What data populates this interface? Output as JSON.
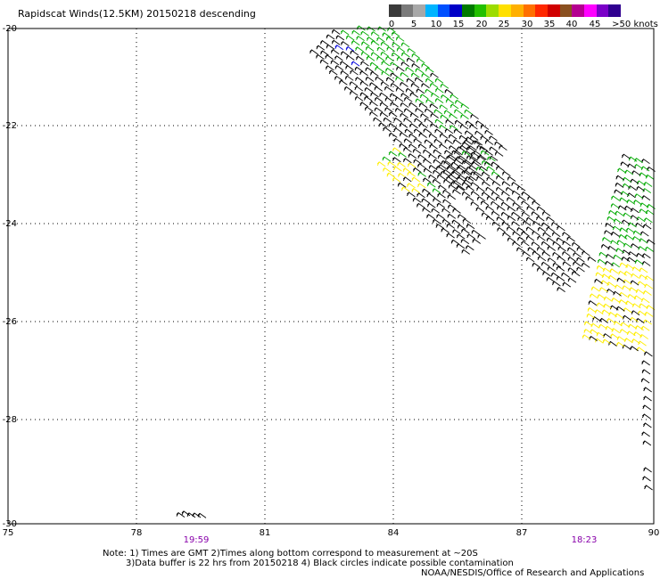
{
  "title": "Rapidscat Winds(12.5KM) 20150218 descending",
  "legend": {
    "labels": [
      "0",
      "5",
      "10",
      "15",
      "20",
      "25",
      "30",
      "35",
      "40",
      "45",
      ">50 knots"
    ],
    "colors": [
      "#3a3a3a",
      "#7a7a7a",
      "#a8a8a8",
      "#00b4ff",
      "#0050ff",
      "#0000c8",
      "#007a00",
      "#22c000",
      "#9cdc00",
      "#ffe000",
      "#ffb000",
      "#ff7000",
      "#ff2800",
      "#d00000",
      "#8a5020",
      "#b40090",
      "#ff00ff",
      "#7a00c8",
      "#300090"
    ]
  },
  "map": {
    "lon_ticks": [
      "75",
      "78",
      "81",
      "84",
      "87",
      "90"
    ],
    "lat_ticks": [
      "-20",
      "-22",
      "-24",
      "-26",
      "-28",
      "-30"
    ],
    "times": [
      "19:59",
      "18:23"
    ],
    "time_color": "#8800aa",
    "wind_colors": {
      "calm": "#000000",
      "moderate": "#00aa00",
      "fresh": "#ffee00",
      "strong": "#0000dd"
    }
  },
  "notes": {
    "line1": "Note: 1) Times are GMT 2)Times along bottom correspond to measurement at ~20S",
    "line2": "3)Data buffer is 22 hrs from 20150218 4) Black circles indicate possible contamination",
    "line3": "NOAA/NESDIS/Office of Research and Applications"
  }
}
